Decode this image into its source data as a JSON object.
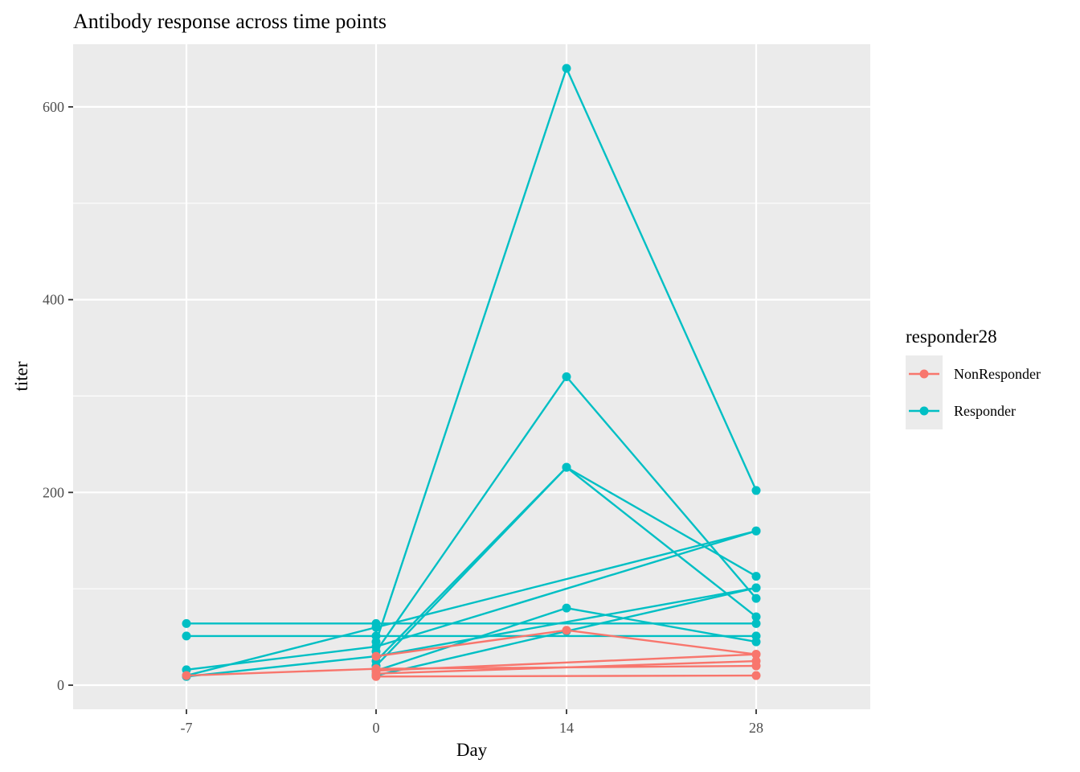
{
  "chart_data": {
    "type": "line",
    "title": "Antibody response across time points",
    "xlabel": "Day",
    "ylabel": "titer",
    "categories": [
      "-7",
      "0",
      "14",
      "28"
    ],
    "yticks": [
      0,
      200,
      400,
      600
    ],
    "ylim": [
      -25,
      665
    ],
    "grid": true,
    "legend": {
      "title": "responder28",
      "placement": "right",
      "entries": [
        {
          "label": "NonResponder",
          "color": "#F8766D"
        },
        {
          "label": "Responder",
          "color": "#00BFC4"
        }
      ]
    },
    "series": [
      {
        "group": "Responder",
        "points": [
          [
            "-7",
            64
          ],
          [
            "0",
            64
          ],
          [
            "28",
            64
          ]
        ]
      },
      {
        "group": "Responder",
        "points": [
          [
            "-7",
            51
          ],
          [
            "0",
            51
          ],
          [
            "28",
            51
          ]
        ]
      },
      {
        "group": "Responder",
        "points": [
          [
            "-7",
            16
          ],
          [
            "0",
            40
          ],
          [
            "28",
            160
          ]
        ]
      },
      {
        "group": "Responder",
        "points": [
          [
            "-7",
            10
          ],
          [
            "0",
            60
          ],
          [
            "28",
            160
          ]
        ]
      },
      {
        "group": "Responder",
        "points": [
          [
            "-7",
            9
          ],
          [
            "0",
            30
          ],
          [
            "28",
            101
          ]
        ]
      },
      {
        "group": "Responder",
        "points": [
          [
            "0",
            45
          ],
          [
            "14",
            640
          ],
          [
            "28",
            202
          ]
        ]
      },
      {
        "group": "Responder",
        "points": [
          [
            "0",
            35
          ],
          [
            "14",
            320
          ],
          [
            "28",
            90
          ]
        ]
      },
      {
        "group": "Responder",
        "points": [
          [
            "0",
            20
          ],
          [
            "14",
            226
          ],
          [
            "28",
            113
          ]
        ]
      },
      {
        "group": "Responder",
        "points": [
          [
            "0",
            25
          ],
          [
            "14",
            226
          ],
          [
            "28",
            71
          ]
        ]
      },
      {
        "group": "Responder",
        "points": [
          [
            "0",
            15
          ],
          [
            "14",
            80
          ],
          [
            "28",
            45
          ]
        ]
      },
      {
        "group": "Responder",
        "points": [
          [
            "0",
            10
          ],
          [
            "14",
            56
          ],
          [
            "28",
            101
          ]
        ]
      },
      {
        "group": "NonResponder",
        "points": [
          [
            "0",
            30
          ],
          [
            "14",
            57
          ],
          [
            "28",
            32
          ]
        ]
      },
      {
        "group": "NonResponder",
        "points": [
          [
            "-7",
            10
          ],
          [
            "0",
            17
          ],
          [
            "28",
            20
          ]
        ]
      },
      {
        "group": "NonResponder",
        "points": [
          [
            "0",
            15
          ],
          [
            "28",
            32
          ]
        ]
      },
      {
        "group": "NonResponder",
        "points": [
          [
            "0",
            12
          ],
          [
            "28",
            25
          ]
        ]
      },
      {
        "group": "NonResponder",
        "points": [
          [
            "0",
            9
          ],
          [
            "28",
            10
          ]
        ]
      }
    ]
  }
}
